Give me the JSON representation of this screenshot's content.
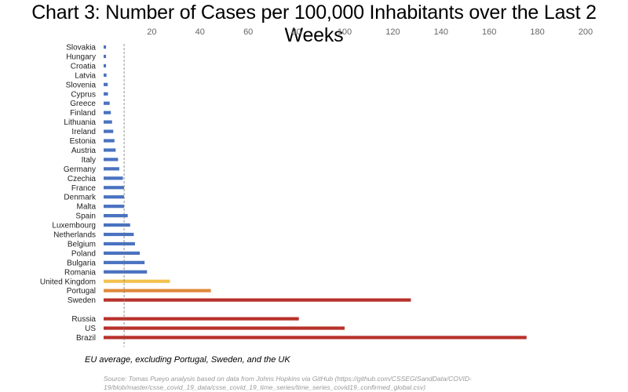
{
  "chart_data": {
    "type": "bar",
    "orientation": "horizontal",
    "title": "Chart 3: Number of Cases per 100,000 Inhabitants over the Last 2 Weeks",
    "xlim": [
      0,
      200
    ],
    "x_ticks": [
      20,
      40,
      60,
      80,
      100,
      120,
      140,
      160,
      180,
      200
    ],
    "grid": false,
    "categories": [
      "Slovakia",
      "Hungary",
      "Croatia",
      "Latvia",
      "Slovenia",
      "Cyprus",
      "Greece",
      "Finland",
      "Lithuania",
      "Ireland",
      "Estonia",
      "Austria",
      "Italy",
      "Germany",
      "Czechia",
      "France",
      "Denmark",
      "Malta",
      "Spain",
      "Luxembourg",
      "Netherlands",
      "Belgium",
      "Poland",
      "Bulgaria",
      "Romania",
      "United Kingdom",
      "Portugal",
      "Sweden",
      "Russia",
      "US",
      "Brazil"
    ],
    "values": [
      1.0,
      1.0,
      1.0,
      1.2,
      1.7,
      1.8,
      2.5,
      3.0,
      3.5,
      4.0,
      4.5,
      5.0,
      6.0,
      6.5,
      8.0,
      8.5,
      8.5,
      8.5,
      10.0,
      11.0,
      12.5,
      13.0,
      15.0,
      17.0,
      18.0,
      27.5,
      44.5,
      127.5,
      81.0,
      100.0,
      175.5
    ],
    "bar_colors": [
      "#4a72c0",
      "#4a72c0",
      "#4a72c0",
      "#4a72c0",
      "#4a72c0",
      "#4a72c0",
      "#4a72c0",
      "#4a72c0",
      "#4a72c0",
      "#4a72c0",
      "#4a72c0",
      "#4a72c0",
      "#4a72c0",
      "#4a72c0",
      "#4a72c0",
      "#4a72c0",
      "#4a72c0",
      "#4a72c0",
      "#4a72c0",
      "#4a72c0",
      "#4a72c0",
      "#4a72c0",
      "#4a72c0",
      "#4a72c0",
      "#4a72c0",
      "#f2c14e",
      "#e08a3c",
      "#b8312b",
      "#b8312b",
      "#b8312b",
      "#b8312b"
    ],
    "reference_line": {
      "value": 8.5,
      "style": "dashed",
      "color": "#777777"
    },
    "annotations": {
      "note": "EU average, excluding Portugal, Sweden, and the UK",
      "source": "Source: Tomas Pueyo analysis based on data from Johns Hopkins via GitHub (https://github.com/CSSEGISandData/COVID-19/blob/master/csse_covid_19_data/csse_covid_19_time_series/time_series_covid19_confirmed_global.csv)"
    }
  }
}
